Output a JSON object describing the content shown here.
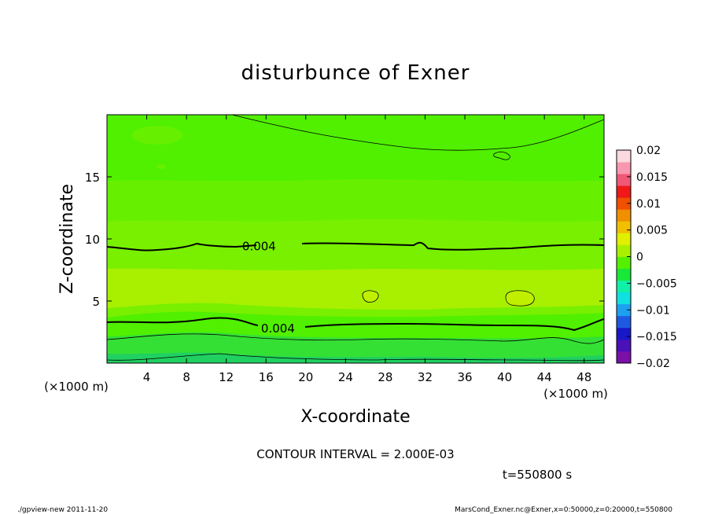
{
  "chart_data": {
    "type": "heatmap",
    "title": "disturbunce of Exner",
    "xlabel": "X-coordinate",
    "ylabel": "Z-coordinate",
    "x_unit": "(×1000 m)",
    "xlim": [
      0,
      50
    ],
    "ylim": [
      0,
      20
    ],
    "x_ticks": [
      4,
      8,
      12,
      16,
      20,
      24,
      28,
      32,
      36,
      40,
      44,
      48
    ],
    "y_ticks": [
      5,
      10,
      15
    ],
    "contour_interval_text": "CONTOUR INTERVAL = 2.000E-03",
    "time_text": "t=550800 s",
    "contour_labels": [
      {
        "text": "0.004",
        "x": 15.3,
        "z": 9.4
      },
      {
        "text": "0.004",
        "x": 17.2,
        "z": 2.8
      }
    ],
    "colorbar": {
      "labels": [
        "0.02",
        "0.015",
        "0.01",
        "0.005",
        "0",
        "−0.005",
        "−0.01",
        "−0.015",
        "−0.02"
      ],
      "range": [
        -0.02,
        0.02
      ],
      "colors": [
        "#7a10a8",
        "#4b10b8",
        "#1818c8",
        "#1e5ae0",
        "#1ea0f0",
        "#10e0e0",
        "#10f0a8",
        "#18e838",
        "#55f000",
        "#a8f000",
        "#e0f000",
        "#f0c000",
        "#f09000",
        "#f05000",
        "#f01818",
        "#f05878",
        "#f898b0",
        "#fcd8e0"
      ]
    },
    "field_levels": {
      "deep_green": "#35e035",
      "green": "#50f000",
      "light_green": "#78f000",
      "yellow_green": "#a8f000"
    }
  },
  "footer": {
    "left": "./gpview-new   2011-11-20",
    "right": "MarsCond_Exner.nc@Exner,x=0:50000,z=0:20000,t=550800"
  }
}
